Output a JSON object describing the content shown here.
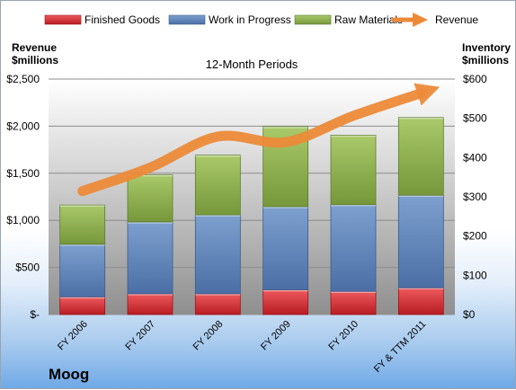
{
  "chart_data": {
    "type": "bar",
    "subtitle": "12-Month Periods",
    "company": "Moog",
    "left_axis": {
      "title_line1": "Revenue",
      "title_line2": "$millions",
      "ylim": [
        0,
        2500
      ],
      "ticks": [
        0,
        500,
        1000,
        1500,
        2000,
        2500
      ],
      "tick_labels": [
        "$-",
        "$500",
        "$1,000",
        "$1,500",
        "$2,000",
        "$2,500"
      ]
    },
    "right_axis": {
      "title_line1": "Inventory",
      "title_line2": "$millions",
      "ylim": [
        0,
        600
      ],
      "ticks": [
        0,
        100,
        200,
        300,
        400,
        500,
        600
      ],
      "tick_labels": [
        "$0",
        "$100",
        "$200",
        "$300",
        "$400",
        "$500",
        "$600"
      ]
    },
    "categories": [
      "FY 2006",
      "FY 2007",
      "FY 2008",
      "FY 2009",
      "FY 2010",
      "FY & TTM 2011"
    ],
    "series": [
      {
        "name": "Finished Goods",
        "type": "stacked-bar",
        "axis": "right",
        "color": "#d9222a",
        "values": [
          45,
          53,
          53,
          63,
          59,
          68
        ]
      },
      {
        "name": "Work in Progress",
        "type": "stacked-bar",
        "axis": "right",
        "color": "#5f84bb",
        "values": [
          134,
          183,
          201,
          212,
          221,
          236
        ]
      },
      {
        "name": "Raw Materials",
        "type": "stacked-bar",
        "axis": "right",
        "color": "#8fb34d",
        "values": [
          100,
          120,
          152,
          204,
          177,
          198
        ]
      },
      {
        "name": "Revenue",
        "type": "line",
        "axis": "left",
        "color": "#ec8a38",
        "values": [
          1310,
          1560,
          1890,
          1830,
          2110,
          2350
        ]
      }
    ],
    "grid": true,
    "legend": "top"
  }
}
